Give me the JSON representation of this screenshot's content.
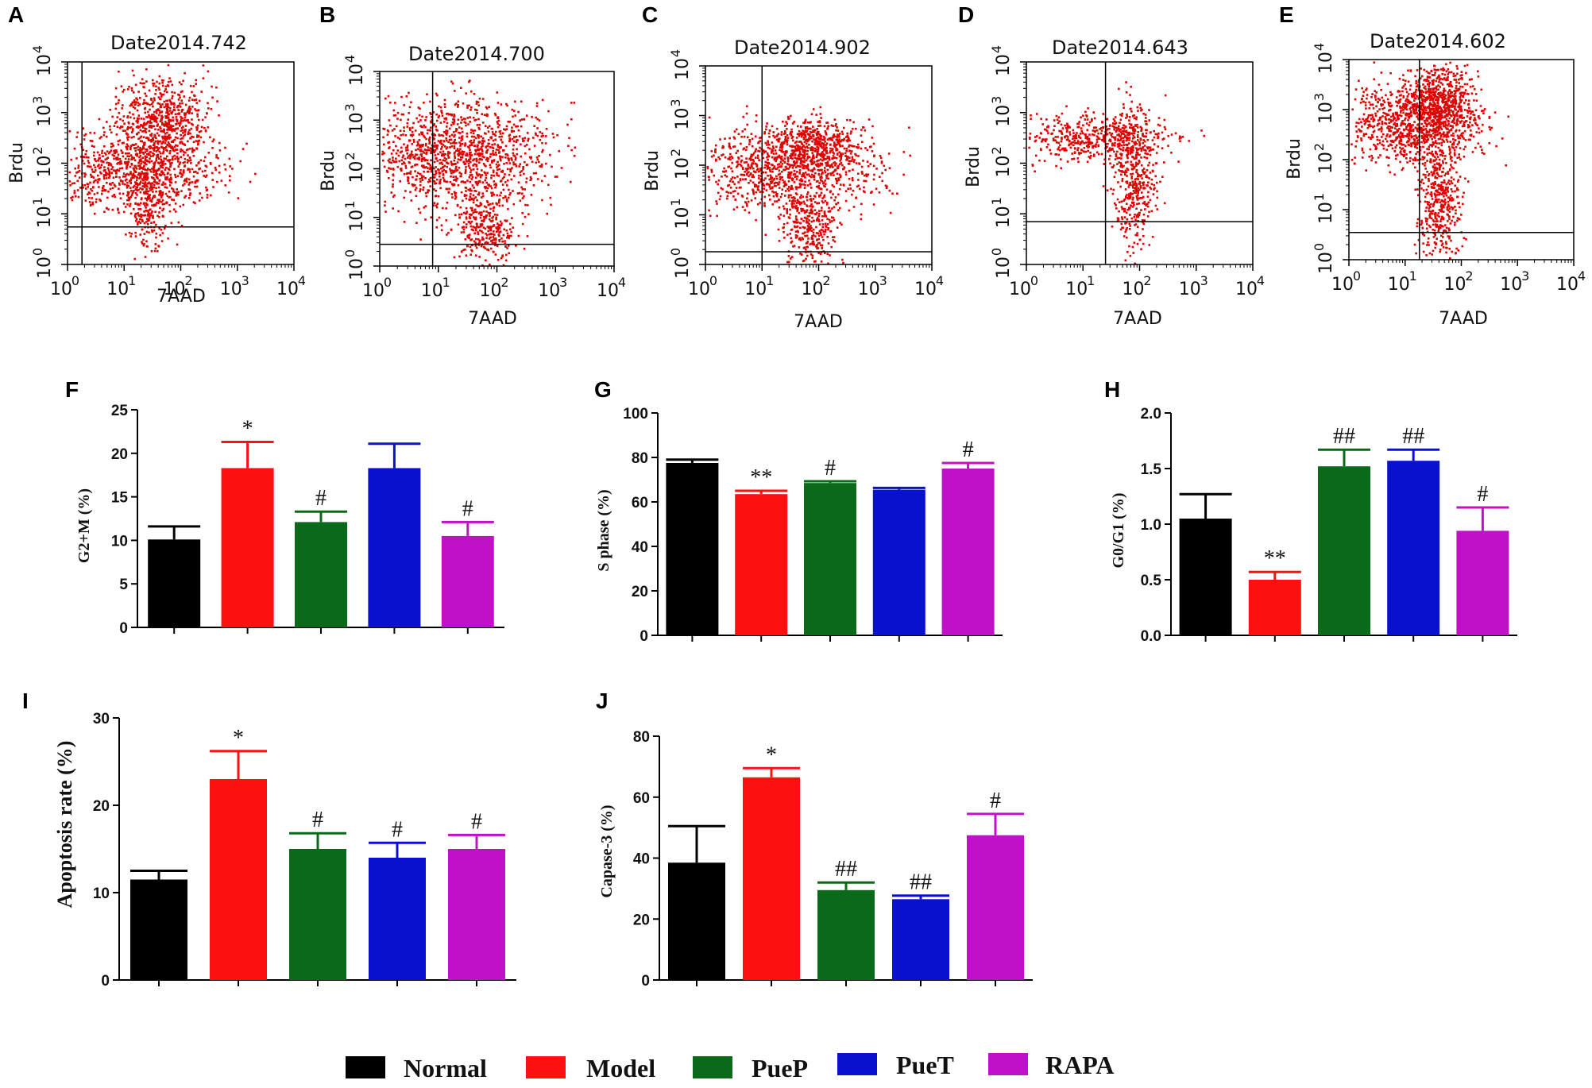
{
  "panel_labels": [
    "A",
    "B",
    "C",
    "D",
    "E",
    "F",
    "G",
    "H",
    "I",
    "J"
  ],
  "legend": [
    {
      "label": "Normal",
      "color": "#000000"
    },
    {
      "label": "Model",
      "color": "#ff1010"
    },
    {
      "label": "PueP",
      "color": "#0a6a1a"
    },
    {
      "label": "PueT",
      "color": "#0a10d0"
    },
    {
      "label": "RAPA",
      "color": "#c010c8"
    }
  ],
  "chart_data": [
    {
      "type": "scatter",
      "panel": "A",
      "title": "Date2014.742",
      "xlabel": "7AAD",
      "ylabel": "Brdu",
      "xscale": "log",
      "yscale": "log",
      "xlim": [
        1,
        10000
      ],
      "ylim": [
        1,
        10000
      ],
      "quadrant_gate": {
        "x": 1.8,
        "y": 5.5
      },
      "tick_labels": [
        "10",
        "0",
        "10",
        "1",
        "10",
        "2",
        "10",
        "3",
        "10",
        "4"
      ],
      "color": "#e00000"
    },
    {
      "type": "scatter",
      "panel": "B",
      "title": "Date2014.700",
      "xlabel": "7AAD",
      "ylabel": "Brdu",
      "xscale": "log",
      "yscale": "log",
      "xlim": [
        1,
        10000
      ],
      "ylim": [
        1,
        10000
      ],
      "quadrant_gate": {
        "x": 8,
        "y": 2.8
      },
      "tick_labels": [
        "10",
        "0",
        "10",
        "1",
        "10",
        "2",
        "10",
        "3",
        "10",
        "4"
      ],
      "color": "#e00000"
    },
    {
      "type": "scatter",
      "panel": "C",
      "title": "Date2014.902",
      "xlabel": "7AAD",
      "ylabel": "Brdu",
      "xscale": "log",
      "yscale": "log",
      "xlim": [
        1,
        10000
      ],
      "ylim": [
        1,
        10000
      ],
      "quadrant_gate": {
        "x": 10,
        "y": 1.8
      },
      "tick_labels": [
        "10",
        "0",
        "10",
        "1",
        "10",
        "2",
        "10",
        "3",
        "10",
        "4"
      ],
      "color": "#e00000"
    },
    {
      "type": "scatter",
      "panel": "D",
      "title": "Date2014.643",
      "xlabel": "7AAD",
      "ylabel": "Brdu",
      "xscale": "log",
      "yscale": "log",
      "xlim": [
        1,
        10000
      ],
      "ylim": [
        1,
        10000
      ],
      "quadrant_gate": {
        "x": 25,
        "y": 7
      },
      "tick_labels": [
        "10",
        "0",
        "10",
        "1",
        "10",
        "2",
        "10",
        "3",
        "10",
        "4"
      ],
      "color": "#e00000"
    },
    {
      "type": "scatter",
      "panel": "E",
      "title": "Date2014.602",
      "xlabel": "7AAD",
      "ylabel": "Brdu",
      "xscale": "log",
      "yscale": "log",
      "xlim": [
        1,
        10000
      ],
      "ylim": [
        1,
        10000
      ],
      "quadrant_gate": {
        "x": 18,
        "y": 3.5
      },
      "tick_labels": [
        "10",
        "0",
        "10",
        "1",
        "10",
        "2",
        "10",
        "3",
        "10",
        "4"
      ],
      "color": "#e00000"
    },
    {
      "type": "bar",
      "panel": "F",
      "ylabel": "G2+M (%)",
      "ylim": [
        0,
        25
      ],
      "yticks": [
        "0",
        "5",
        "10",
        "15",
        "20",
        "25"
      ],
      "categories": [
        "Normal",
        "Model",
        "PueP",
        "PueT",
        "RAPA"
      ],
      "values": [
        10.1,
        18.3,
        12.1,
        18.3,
        10.5
      ],
      "errors": [
        1.5,
        3.0,
        1.2,
        2.8,
        1.6
      ],
      "annotations": [
        "",
        "*",
        "#",
        "",
        "#"
      ]
    },
    {
      "type": "bar",
      "panel": "G",
      "ylabel": "S phase (%)",
      "ylim": [
        0,
        100
      ],
      "yticks": [
        "0",
        "20",
        "40",
        "60",
        "80",
        "100"
      ],
      "categories": [
        "Normal",
        "Model",
        "PueP",
        "PueT",
        "RAPA"
      ],
      "values": [
        77.5,
        63.5,
        68.5,
        65.5,
        75.0
      ],
      "errors": [
        1.5,
        1.5,
        0.8,
        0.8,
        2.5
      ],
      "annotations": [
        "",
        "**",
        "#",
        "",
        "#"
      ]
    },
    {
      "type": "bar",
      "panel": "H",
      "ylabel": "G0/G1 (%)",
      "ylim": [
        0,
        2.0
      ],
      "yticks": [
        "0.0",
        "0.5",
        "1.0",
        "1.5",
        "2.0"
      ],
      "categories": [
        "Normal",
        "Model",
        "PueP",
        "PueT",
        "RAPA"
      ],
      "values": [
        1.05,
        0.5,
        1.52,
        1.57,
        0.94
      ],
      "errors": [
        0.22,
        0.07,
        0.15,
        0.1,
        0.21
      ],
      "annotations": [
        "",
        "**",
        "##",
        "##",
        "#"
      ]
    },
    {
      "type": "bar",
      "panel": "I",
      "ylabel": "Apoptosis rate (%)",
      "ylim": [
        0,
        30
      ],
      "yticks": [
        "0",
        "10",
        "20",
        "30"
      ],
      "categories": [
        "Normal",
        "Model",
        "PueP",
        "PueT",
        "RAPA"
      ],
      "values": [
        11.5,
        23.0,
        15.0,
        14.0,
        15.0
      ],
      "errors": [
        1.0,
        3.2,
        1.8,
        1.7,
        1.6
      ],
      "annotations": [
        "",
        "*",
        "#",
        "#",
        "#"
      ]
    },
    {
      "type": "bar",
      "panel": "J",
      "ylabel": "Capase-3 (%)",
      "ylim": [
        0,
        80
      ],
      "yticks": [
        "0",
        "20",
        "40",
        "60",
        "80"
      ],
      "categories": [
        "Normal",
        "Model",
        "PueP",
        "PueT",
        "RAPA"
      ],
      "values": [
        38.5,
        66.5,
        29.5,
        26.5,
        47.5
      ],
      "errors": [
        12.0,
        3.0,
        2.5,
        1.2,
        7.0
      ],
      "annotations": [
        "",
        "*",
        "##",
        "##",
        "#"
      ]
    }
  ]
}
